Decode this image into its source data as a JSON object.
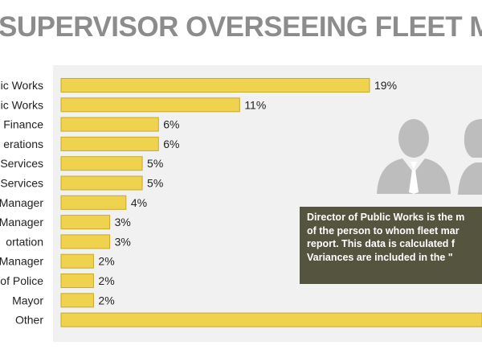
{
  "title": "SUPERVISOR OVERSEEING FLEET MANA",
  "colors": {
    "bar": "#efd34f",
    "bar_stroke": "#c9a92a",
    "panel": "#f1f1f1",
    "note_bg": "#55553f",
    "icon": "#bdbdbd"
  },
  "note": {
    "lines": [
      "Director of Public Works is the m",
      "of the person to whom fleet mar",
      "report. This data is calculated f",
      "Variances are included in the \""
    ]
  },
  "icons": [
    "person-male-icon",
    "person-female-icon"
  ],
  "chart_data": {
    "type": "bar",
    "orientation": "horizontal",
    "categories": [
      "ic Works",
      "ic Works",
      "Finance",
      "erations",
      "Services",
      "Services",
      "Manager",
      "Manager",
      "ortation",
      "Manager",
      "of Police",
      "Mayor",
      "Other"
    ],
    "values": [
      19,
      11,
      6,
      6,
      5,
      5,
      4,
      3,
      3,
      2,
      2,
      2,
      null
    ],
    "value_labels": [
      "19%",
      "11%",
      "6%",
      "6%",
      "5%",
      "5%",
      "4%",
      "3%",
      "3%",
      "2%",
      "2%",
      "2%",
      ""
    ],
    "xlim": [
      0,
      19
    ],
    "grid": false,
    "legend": "none"
  }
}
